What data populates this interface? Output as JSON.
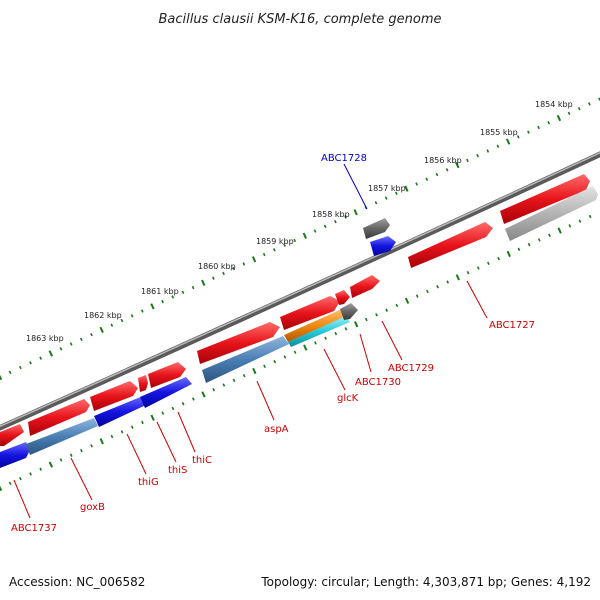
{
  "title": "Bacillus clausii KSM-K16, complete genome",
  "footer": {
    "accession": "Accession: NC_006582",
    "topology": "Topology: circular; Length: 4,303,871 bp; Genes: 4,192"
  },
  "colors": {
    "gene_red": "#e8141b",
    "gene_blue": "#1515e0",
    "gene_steel": "#4a7fb5",
    "gene_orange": "#f08a10",
    "gene_cyan": "#28c8d8",
    "gene_gray": "#666666",
    "gene_lightgray": "#b4b4b4",
    "backbone": "#8a8a8a",
    "tick": "#1a7a1a",
    "label_red": "#cc0000",
    "label_blue": "#0000cc"
  },
  "kbp_markers": [
    "1854 kbp",
    "1855 kbp",
    "1856 kbp",
    "1857 kbp",
    "1858 kbp",
    "1859 kbp",
    "1860 kbp",
    "1861 kbp",
    "1862 kbp",
    "1863 kbp"
  ],
  "gene_labels": [
    {
      "text": "ABC1728",
      "color": "label_blue"
    },
    {
      "text": "ABC1727",
      "color": "label_red"
    },
    {
      "text": "ABC1729",
      "color": "label_red"
    },
    {
      "text": "ABC1730",
      "color": "label_red"
    },
    {
      "text": "glcK",
      "color": "label_red"
    },
    {
      "text": "aspA",
      "color": "label_red"
    },
    {
      "text": "thiC",
      "color": "label_red"
    },
    {
      "text": "thiS",
      "color": "label_red"
    },
    {
      "text": "thiG",
      "color": "label_red"
    },
    {
      "text": "goxB",
      "color": "label_red"
    },
    {
      "text": "ABC1737",
      "color": "label_red"
    }
  ]
}
